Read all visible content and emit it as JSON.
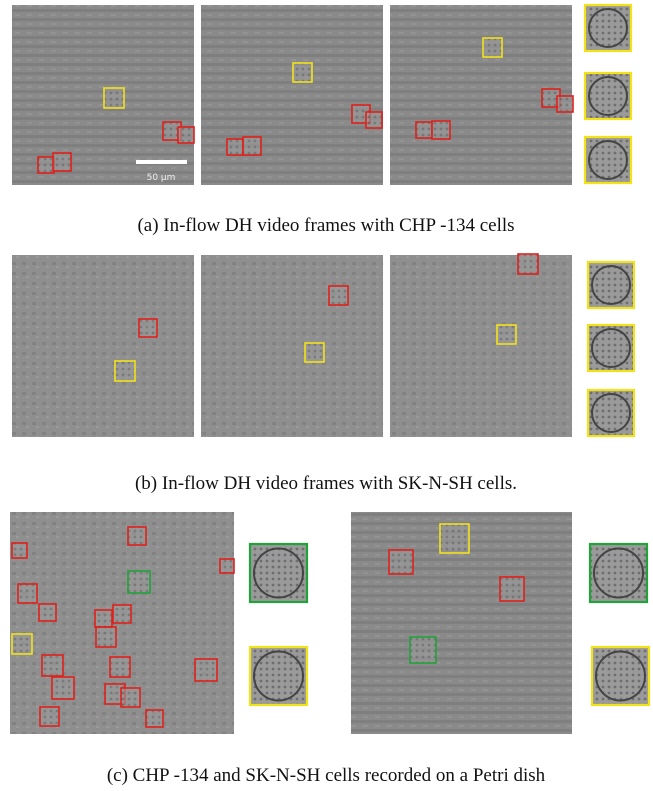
{
  "figure": {
    "panels": [
      {
        "caption": "(a) In-flow DH video frames with CHP -134 cells",
        "scale_bar_label": "50 µm"
      },
      {
        "caption": "(b) In-flow DH video frames with SK-N-SH cells."
      },
      {
        "caption": "(c) CHP -134 and SK-N-SH cells recorded on a Petri dish"
      }
    ]
  }
}
